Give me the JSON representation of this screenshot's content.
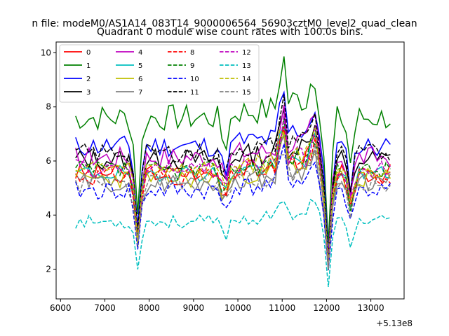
{
  "suptitle": "n file: modeM0/AS1A14_083T14_9000006564_56903cztM0_level2_quad_clean",
  "chart_data": {
    "type": "line",
    "title": "Quadrant 0 module wise count rates with 100.0s bins.",
    "xlabel": "",
    "ylabel": "",
    "x_offset_label": "+5.13e8",
    "xlim": [
      5900,
      13750
    ],
    "ylim": [
      0.9,
      10.4
    ],
    "xticks": [
      6000,
      7000,
      8000,
      9000,
      10000,
      11000,
      12000,
      13000
    ],
    "yticks": [
      2,
      4,
      6,
      8,
      10
    ],
    "x_start": 6340,
    "x_step": 100,
    "n_points": 72,
    "legend_location": "upper left",
    "legend_columns": 4,
    "series": [
      {
        "name": "0",
        "color": "#ff0000",
        "dash": "solid",
        "base": 5.55,
        "amp": 0.35,
        "seed": 3
      },
      {
        "name": "1",
        "color": "#008000",
        "dash": "solid",
        "base": 7.6,
        "amp": 0.5,
        "seed": 7
      },
      {
        "name": "2",
        "color": "#0000ff",
        "dash": "solid",
        "base": 6.55,
        "amp": 0.4,
        "seed": 11
      },
      {
        "name": "3",
        "color": "#000000",
        "dash": "solid",
        "base": 6.05,
        "amp": 0.4,
        "seed": 13
      },
      {
        "name": "4",
        "color": "#bf00bf",
        "dash": "solid",
        "base": 6.15,
        "amp": 0.4,
        "seed": 17
      },
      {
        "name": "5",
        "color": "#00bfbf",
        "dash": "solid",
        "base": 5.55,
        "amp": 0.3,
        "seed": 19
      },
      {
        "name": "6",
        "color": "#bfbf00",
        "dash": "solid",
        "base": 5.35,
        "amp": 0.35,
        "seed": 23
      },
      {
        "name": "7",
        "color": "#808080",
        "dash": "solid",
        "base": 5.2,
        "amp": 0.35,
        "seed": 29
      },
      {
        "name": "8",
        "color": "#ff0000",
        "dash": "dashed",
        "base": 5.45,
        "amp": 0.35,
        "seed": 31
      },
      {
        "name": "9",
        "color": "#008000",
        "dash": "dashed",
        "base": 5.65,
        "amp": 0.35,
        "seed": 37
      },
      {
        "name": "10",
        "color": "#0000ff",
        "dash": "dashed",
        "base": 4.9,
        "amp": 0.35,
        "seed": 41
      },
      {
        "name": "11",
        "color": "#000000",
        "dash": "dashed",
        "base": 6.3,
        "amp": 0.35,
        "seed": 43
      },
      {
        "name": "12",
        "color": "#bf00bf",
        "dash": "dashed",
        "base": 5.7,
        "amp": 0.35,
        "seed": 47
      },
      {
        "name": "13",
        "color": "#00bfbf",
        "dash": "dashed",
        "base": 3.75,
        "amp": 0.25,
        "seed": 53
      },
      {
        "name": "14",
        "color": "#bfbf00",
        "dash": "dashed",
        "base": 5.75,
        "amp": 0.35,
        "seed": 59
      },
      {
        "name": "15",
        "color": "#808080",
        "dash": "dashed",
        "base": 5.15,
        "amp": 0.35,
        "seed": 61
      }
    ],
    "dips": [
      {
        "x": 7740,
        "depth": 0.45
      },
      {
        "x": 9700,
        "depth": 0.15
      },
      {
        "x": 12040,
        "depth": 0.62
      },
      {
        "x": 12540,
        "depth": 0.22
      }
    ],
    "bumps": [
      {
        "x": 11000,
        "height": 0.28
      },
      {
        "x": 11700,
        "height": 0.18
      }
    ]
  }
}
